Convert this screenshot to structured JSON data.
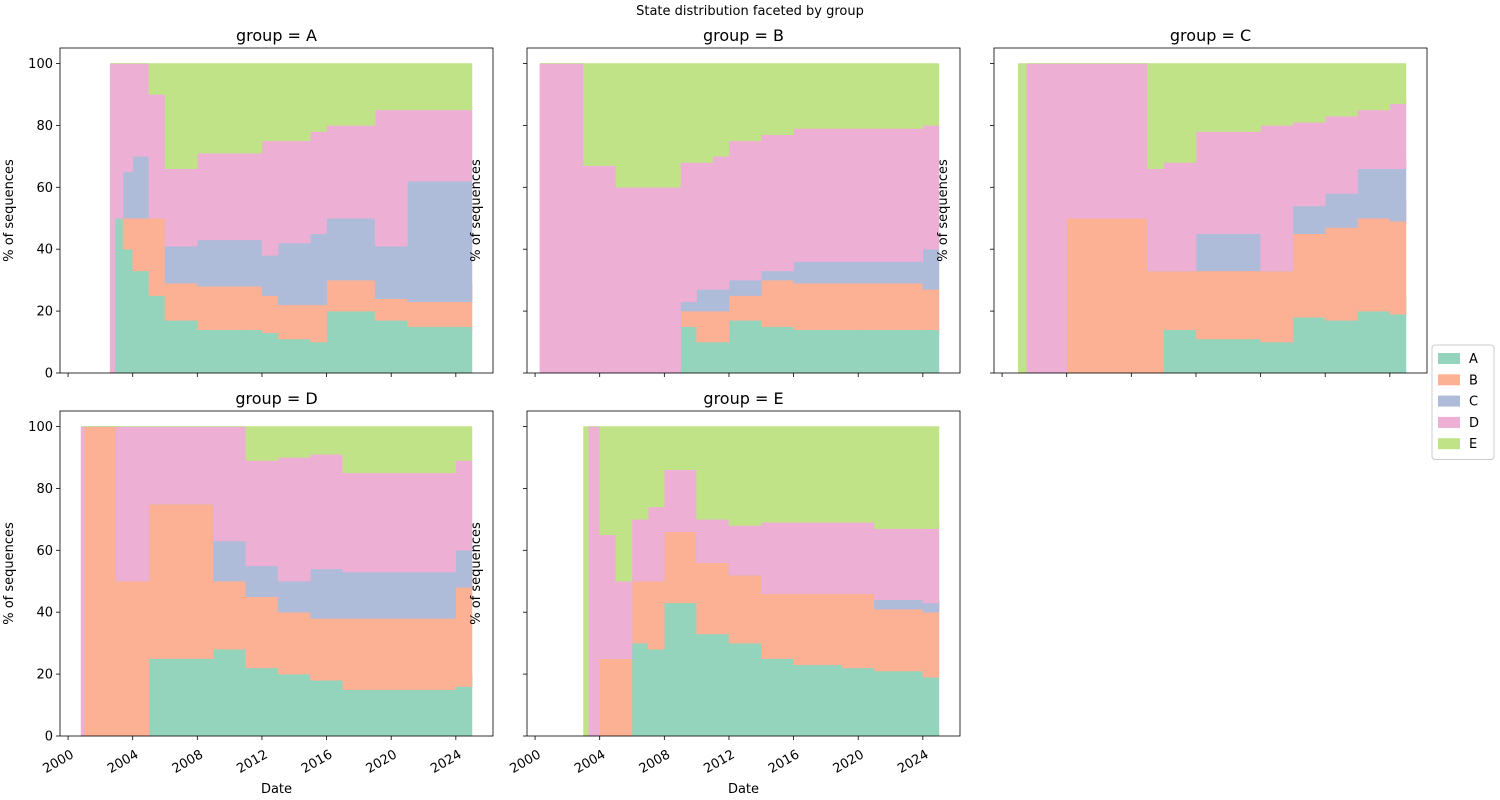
{
  "figure": {
    "suptitle": "State distribution faceted by group"
  },
  "chart_data": {
    "type": "area",
    "subtype": "stacked-100-percent",
    "xlabel": "Date",
    "ylabel": "% of sequences",
    "xlim": [
      1999.5,
      2026.3
    ],
    "ylim": [
      0,
      105
    ],
    "x_ticks": [
      2000,
      2004,
      2008,
      2012,
      2016,
      2020,
      2024
    ],
    "y_ticks": [
      0,
      20,
      40,
      60,
      80,
      100
    ],
    "legend": {
      "position": "right",
      "entries": [
        "A",
        "B",
        "C",
        "D",
        "E"
      ]
    },
    "state_colors": {
      "A": "#94d4bc",
      "B": "#fcb094",
      "C": "#afbcd9",
      "D": "#eeafd5",
      "E": "#c1e388"
    },
    "facets": [
      {
        "title": "group = A",
        "x": [
          2002.6,
          2002.9,
          2003.4,
          2004.0,
          2005.0,
          2006.0,
          2008.0,
          2011.0,
          2012.0,
          2013.0,
          2015.0,
          2016.0,
          2019.0,
          2021.0,
          2024.0,
          2025.0
        ],
        "series": [
          {
            "name": "A",
            "values": [
              0,
              50,
              40,
              33,
              25,
              17,
              14,
              14,
              13,
              11,
              10,
              20,
              17,
              15,
              15,
              14
            ]
          },
          {
            "name": "B",
            "values": [
              0,
              0,
              10,
              17,
              25,
              12,
              14,
              14,
              12,
              11,
              12,
              10,
              7,
              8,
              8,
              15
            ]
          },
          {
            "name": "C",
            "values": [
              0,
              0,
              15,
              20,
              0,
              12,
              15,
              15,
              13,
              20,
              23,
              20,
              17,
              39,
              39,
              35
            ]
          },
          {
            "name": "D",
            "values": [
              100,
              50,
              35,
              30,
              40,
              25,
              28,
              28,
              37,
              33,
              33,
              30,
              44,
              23,
              23,
              22
            ]
          },
          {
            "name": "E",
            "values": [
              0,
              0,
              0,
              0,
              10,
              34,
              29,
              29,
              25,
              25,
              22,
              20,
              15,
              15,
              15,
              14
            ]
          }
        ]
      },
      {
        "title": "group = B",
        "x": [
          2000.3,
          2001.0,
          2002.0,
          2003.0,
          2005.0,
          2007.0,
          2009.0,
          2010.0,
          2011.0,
          2012.0,
          2014.0,
          2016.0,
          2020.0,
          2024.0,
          2025.0
        ],
        "series": [
          {
            "name": "A",
            "values": [
              0,
              0,
              0,
              0,
              0,
              0,
              15,
              10,
              10,
              17,
              15,
              14,
              14,
              14,
              13
            ]
          },
          {
            "name": "B",
            "values": [
              0,
              0,
              0,
              0,
              0,
              0,
              5,
              10,
              10,
              8,
              15,
              15,
              15,
              13,
              14
            ]
          },
          {
            "name": "C",
            "values": [
              0,
              0,
              0,
              0,
              0,
              0,
              3,
              7,
              7,
              5,
              3,
              7,
              7,
              13,
              13
            ]
          },
          {
            "name": "D",
            "values": [
              100,
              100,
              100,
              67,
              60,
              60,
              45,
              41,
              43,
              45,
              44,
              43,
              43,
              40,
              40
            ]
          },
          {
            "name": "E",
            "values": [
              0,
              0,
              0,
              33,
              40,
              40,
              32,
              32,
              30,
              25,
              23,
              21,
              21,
              20,
              20
            ]
          }
        ]
      },
      {
        "title": "group = C",
        "x": [
          2001.0,
          2001.5,
          2004.0,
          2008.0,
          2009.0,
          2010.0,
          2012.0,
          2014.0,
          2016.0,
          2018.0,
          2020.0,
          2022.0,
          2024.0,
          2025.0
        ],
        "series": [
          {
            "name": "A",
            "values": [
              0,
              0,
              0,
              0,
              0,
              14,
              11,
              11,
              10,
              18,
              17,
              20,
              19,
              25
            ]
          },
          {
            "name": "B",
            "values": [
              0,
              0,
              50,
              50,
              33,
              19,
              22,
              22,
              23,
              27,
              30,
              30,
              30,
              31
            ]
          },
          {
            "name": "C",
            "values": [
              0,
              0,
              0,
              0,
              0,
              0,
              12,
              12,
              0,
              9,
              11,
              16,
              17,
              13
            ]
          },
          {
            "name": "D",
            "values": [
              0,
              100,
              50,
              50,
              33,
              35,
              33,
              33,
              47,
              27,
              25,
              19,
              21,
              19
            ]
          },
          {
            "name": "E",
            "values": [
              100,
              0,
              0,
              0,
              34,
              32,
              22,
              22,
              20,
              19,
              17,
              15,
              13,
              12
            ]
          }
        ]
      },
      {
        "title": "group = D",
        "x": [
          2000.8,
          2001.0,
          2003.0,
          2004.0,
          2005.0,
          2008.0,
          2009.0,
          2011.0,
          2013.0,
          2015.0,
          2017.0,
          2019.0,
          2022.0,
          2024.0,
          2025.0
        ],
        "series": [
          {
            "name": "A",
            "values": [
              0,
              0,
              0,
              0,
              25,
              25,
              28,
              22,
              20,
              18,
              15,
              15,
              15,
              16,
              20
            ]
          },
          {
            "name": "B",
            "values": [
              0,
              100,
              50,
              50,
              50,
              50,
              22,
              23,
              20,
              20,
              23,
              23,
              23,
              32,
              32
            ]
          },
          {
            "name": "C",
            "values": [
              0,
              0,
              0,
              0,
              0,
              0,
              13,
              10,
              10,
              16,
              15,
              15,
              15,
              12,
              11
            ]
          },
          {
            "name": "D",
            "values": [
              100,
              0,
              50,
              50,
              25,
              25,
              37,
              34,
              40,
              37,
              32,
              32,
              32,
              29,
              26
            ]
          },
          {
            "name": "E",
            "values": [
              0,
              0,
              0,
              0,
              0,
              0,
              0,
              11,
              10,
              9,
              15,
              15,
              15,
              11,
              11
            ]
          }
        ]
      },
      {
        "title": "group = E",
        "x": [
          2003.0,
          2003.3,
          2004.0,
          2005.0,
          2006.0,
          2007.0,
          2008.0,
          2010.0,
          2012.0,
          2014.0,
          2016.0,
          2019.0,
          2021.0,
          2024.0,
          2025.0
        ],
        "series": [
          {
            "name": "A",
            "values": [
              0,
              0,
              0,
              0,
              30,
              28,
              43,
              33,
              30,
              25,
              23,
              22,
              21,
              19,
              19
            ]
          },
          {
            "name": "B",
            "values": [
              0,
              0,
              25,
              25,
              20,
              22,
              23,
              23,
              22,
              21,
              23,
              24,
              20,
              21,
              25
            ]
          },
          {
            "name": "C",
            "values": [
              0,
              0,
              0,
              0,
              0,
              0,
              0,
              0,
              0,
              0,
              0,
              0,
              3,
              3,
              0
            ]
          },
          {
            "name": "D",
            "values": [
              0,
              100,
              40,
              25,
              20,
              24,
              20,
              14,
              16,
              23,
              23,
              23,
              23,
              24,
              25
            ]
          },
          {
            "name": "E",
            "values": [
              100,
              0,
              35,
              50,
              30,
              26,
              14,
              30,
              32,
              31,
              31,
              31,
              33,
              33,
              31
            ]
          }
        ]
      }
    ]
  }
}
